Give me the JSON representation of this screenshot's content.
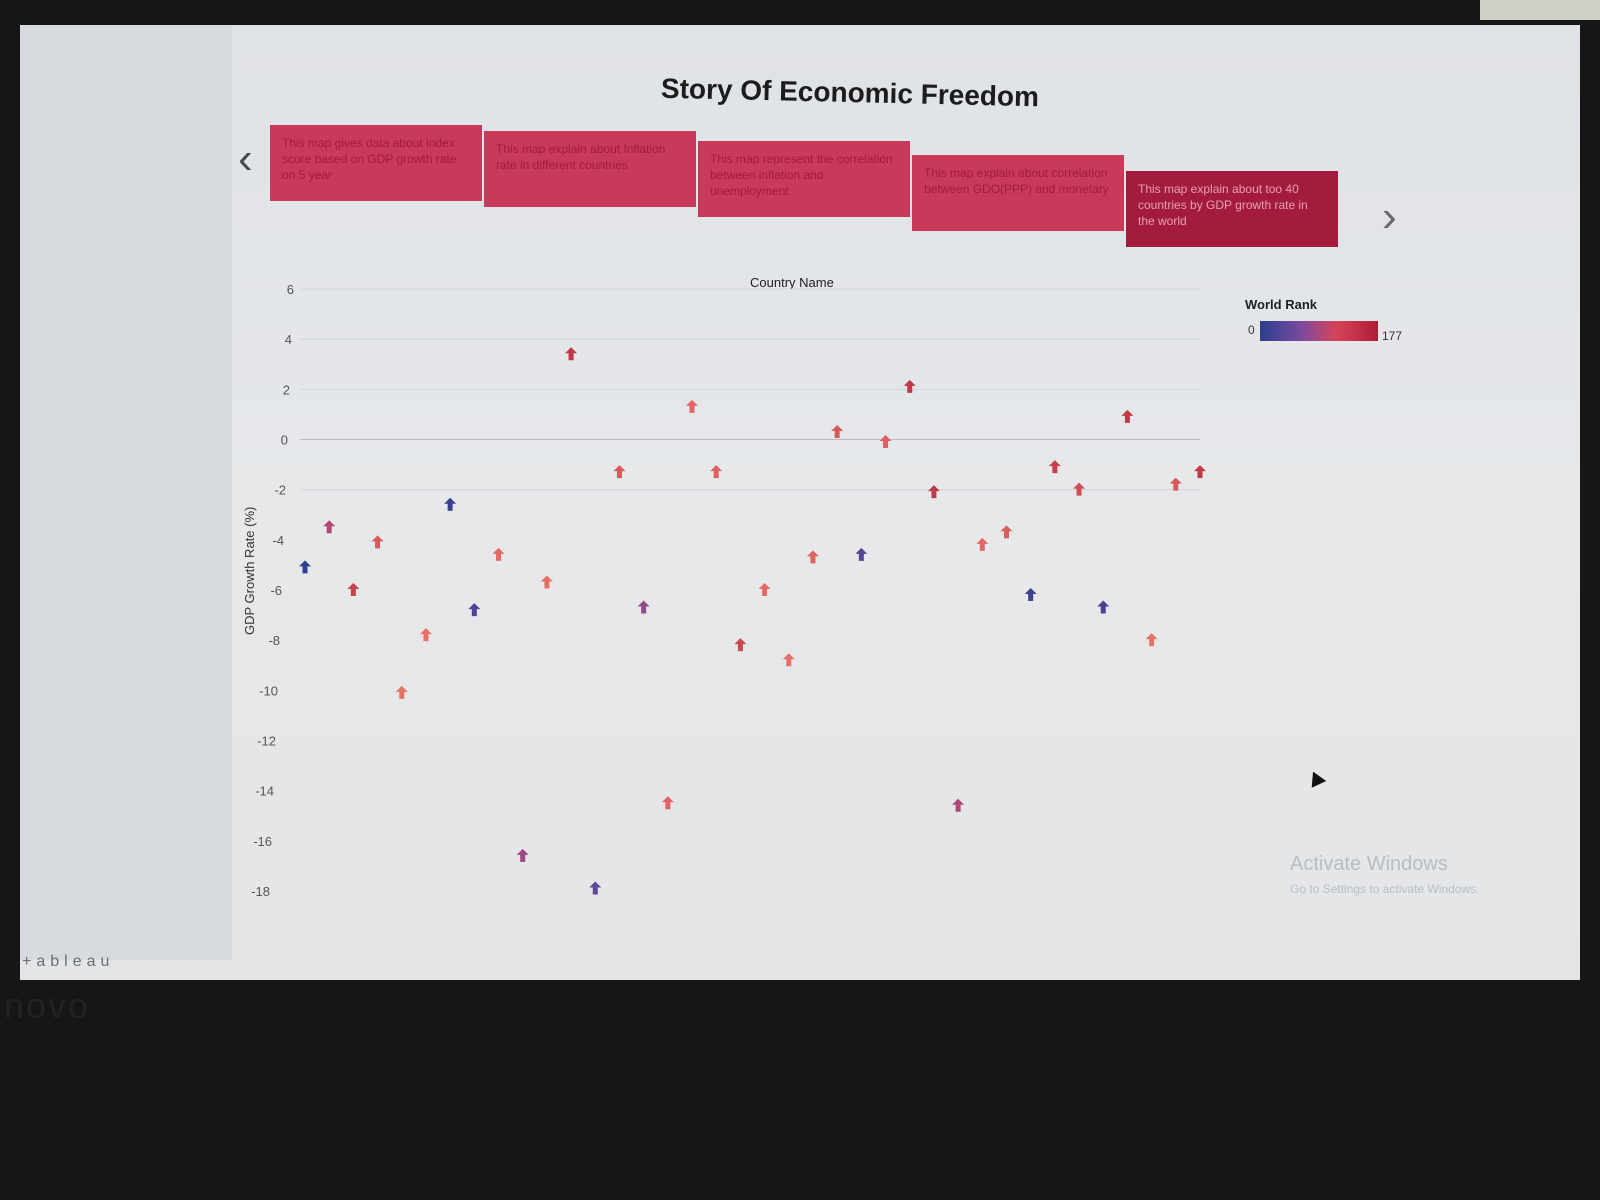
{
  "story": {
    "title": "Story Of Economic Freedom",
    "points": [
      {
        "caption": "This map gives data about index score based on GDP growth rate on 5 year",
        "active": false
      },
      {
        "caption": "This map explain about Inflation rate in different countries",
        "active": false
      },
      {
        "caption": "This map represent the correlation between inflation and unemployment",
        "active": false
      },
      {
        "caption": "This map explain about correlation between GDO(PPP) and monetary",
        "active": false
      },
      {
        "caption": "This map explain about too 40 countries by GDP growth rate in the world",
        "active": true
      }
    ]
  },
  "chart_data": {
    "type": "scatter",
    "title": "",
    "xlabel": "Country Name",
    "ylabel": "GDP Growth Rate (%)",
    "ylim": [
      -18,
      6
    ],
    "yticks": [
      6,
      4,
      2,
      0,
      -2,
      -4,
      -6,
      -8,
      -10,
      -12,
      -14,
      -16,
      -18
    ],
    "grid": true,
    "marker": "arrow-up",
    "color_legend": {
      "title": "World Rank",
      "min": "0",
      "max": "177",
      "placement": "top-right"
    },
    "series": [
      {
        "values": [
          {
            "x": 1,
            "y": -5.1,
            "rank": 5
          },
          {
            "x": 2,
            "y": -3.5,
            "rank": 70
          },
          {
            "x": 3,
            "y": -6.0,
            "rank": 160
          },
          {
            "x": 4,
            "y": -4.1,
            "rank": 150
          },
          {
            "x": 5,
            "y": -10.1,
            "rank": 140
          },
          {
            "x": 6,
            "y": -7.8,
            "rank": 120
          },
          {
            "x": 7,
            "y": -2.6,
            "rank": 8
          },
          {
            "x": 8,
            "y": -6.8,
            "rank": 20
          },
          {
            "x": 9,
            "y": -4.6,
            "rank": 115
          },
          {
            "x": 10,
            "y": -16.6,
            "rank": 60
          },
          {
            "x": 11,
            "y": -5.7,
            "rank": 118
          },
          {
            "x": 12,
            "y": 3.4,
            "rank": 165
          },
          {
            "x": 13,
            "y": -17.9,
            "rank": 30
          },
          {
            "x": 14,
            "y": -1.3,
            "rank": 150
          },
          {
            "x": 15,
            "y": -6.7,
            "rank": 55
          },
          {
            "x": 16,
            "y": -14.5,
            "rank": 110
          },
          {
            "x": 17,
            "y": 1.3,
            "rank": 112
          },
          {
            "x": 18,
            "y": -1.3,
            "rank": 108
          },
          {
            "x": 19,
            "y": -8.2,
            "rank": 158
          },
          {
            "x": 20,
            "y": -6.0,
            "rank": 115
          },
          {
            "x": 21,
            "y": -8.8,
            "rank": 120
          },
          {
            "x": 22,
            "y": -4.7,
            "rank": 145
          },
          {
            "x": 23,
            "y": 0.3,
            "rank": 150
          },
          {
            "x": 24,
            "y": -4.6,
            "rank": 25
          },
          {
            "x": 25,
            "y": -0.1,
            "rank": 108
          },
          {
            "x": 26,
            "y": 2.1,
            "rank": 165
          },
          {
            "x": 27,
            "y": -2.1,
            "rank": 165
          },
          {
            "x": 28,
            "y": -14.6,
            "rank": 70
          },
          {
            "x": 29,
            "y": -4.2,
            "rank": 112
          },
          {
            "x": 30,
            "y": -3.7,
            "rank": 148
          },
          {
            "x": 31,
            "y": -6.2,
            "rank": 10
          },
          {
            "x": 32,
            "y": -1.1,
            "rank": 162
          },
          {
            "x": 33,
            "y": -2.0,
            "rank": 155
          },
          {
            "x": 34,
            "y": -6.7,
            "rank": 15
          },
          {
            "x": 35,
            "y": 0.9,
            "rank": 165
          },
          {
            "x": 36,
            "y": -8.0,
            "rank": 140
          },
          {
            "x": 37,
            "y": -1.8,
            "rank": 150
          },
          {
            "x": 38,
            "y": -1.3,
            "rank": 165
          }
        ]
      }
    ]
  },
  "watermark": {
    "line1": "Activate Windows",
    "line2": "Go to Settings to activate Windows."
  },
  "footer": {
    "logo_text": "+ableau"
  },
  "laptop": {
    "brand": "novo"
  },
  "colors": {
    "story_point_bg": "#c73a5a",
    "story_point_active_bg": "#a31c3e",
    "rank_low": "#2b3f8f",
    "rank_mid": "#d64459",
    "rank_high": "#b01c38"
  }
}
